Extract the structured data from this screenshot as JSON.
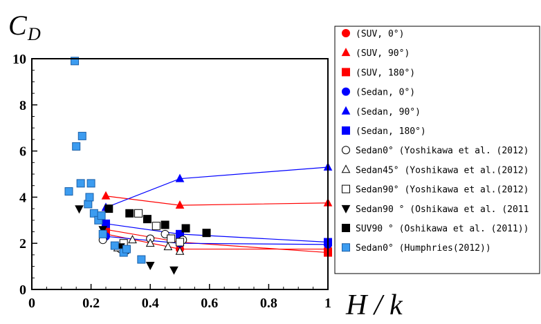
{
  "chart_data": {
    "type": "scatter",
    "y_axis_title": "C",
    "y_axis_title_sub": "D",
    "x_axis_title": "H / k",
    "xlim": [
      0,
      1
    ],
    "ylim": [
      0,
      10
    ],
    "x_ticks": [
      {
        "value": 0,
        "label": "0"
      },
      {
        "value": 0.2,
        "label": "0.2"
      },
      {
        "value": 0.4,
        "label": "0.4"
      },
      {
        "value": 0.6,
        "label": "0.6"
      },
      {
        "value": 0.8,
        "label": "0.8"
      },
      {
        "value": 1,
        "label": "1"
      }
    ],
    "y_ticks": [
      {
        "value": 0,
        "label": "0"
      },
      {
        "value": 2,
        "label": "2"
      },
      {
        "value": 4,
        "label": "4"
      },
      {
        "value": 6,
        "label": "6"
      },
      {
        "value": 8,
        "label": "8"
      },
      {
        "value": 10,
        "label": "10"
      }
    ],
    "legend_position": "right",
    "series": [
      {
        "name": "(SUV, 0°)",
        "label": "(SUV, 0°)",
        "marker": "circle",
        "fill": "#ff0000",
        "stroke": "#ff0000",
        "line": true,
        "line_color": "#ff0000",
        "points": [
          [
            0.25,
            2.4
          ],
          [
            0.5,
            1.75
          ],
          [
            1,
            1.75
          ]
        ]
      },
      {
        "name": "(SUV, 90°)",
        "label": "(SUV, 90°)",
        "marker": "triangle",
        "fill": "#ff0000",
        "stroke": "#ff0000",
        "line": true,
        "line_color": "#ff0000",
        "points": [
          [
            0.25,
            4.05
          ],
          [
            0.5,
            3.65
          ],
          [
            1,
            3.75
          ]
        ]
      },
      {
        "name": "(SUV, 180°)",
        "label": "(SUV, 180°)",
        "marker": "square",
        "fill": "#ff0000",
        "stroke": "#ff0000",
        "line": true,
        "line_color": "#ff0000",
        "points": [
          [
            0.25,
            2.6
          ],
          [
            0.5,
            2.05
          ],
          [
            1,
            1.6
          ]
        ]
      },
      {
        "name": "(Sedan, 0°)",
        "label": "(Sedan, 0°)",
        "marker": "circle",
        "fill": "#0000ff",
        "stroke": "#0000ff",
        "line": true,
        "line_color": "#0000ff",
        "points": [
          [
            0.25,
            2.3
          ],
          [
            0.5,
            2.0
          ],
          [
            1,
            1.95
          ]
        ]
      },
      {
        "name": "(Sedan, 90°)",
        "label": "(Sedan, 90°)",
        "marker": "triangle",
        "fill": "#0000ff",
        "stroke": "#0000ff",
        "line": true,
        "line_color": "#0000ff",
        "points": [
          [
            0.25,
            3.55
          ],
          [
            0.5,
            4.8
          ],
          [
            1,
            5.3
          ]
        ]
      },
      {
        "name": "(Sedan, 180°)",
        "label": "(Sedan, 180°)",
        "marker": "square",
        "fill": "#0000ff",
        "stroke": "#0000ff",
        "line": true,
        "line_color": "#0000ff",
        "points": [
          [
            0.25,
            2.85
          ],
          [
            0.5,
            2.4
          ],
          [
            1,
            2.05
          ]
        ]
      },
      {
        "name": "Sedan0° (Yoshikawa et al. (2012)",
        "label": "Sedan0° (Yoshikawa et al. (2012)",
        "marker": "circle",
        "fill": "#ffffff",
        "stroke": "#000000",
        "line": false,
        "points": [
          [
            0.24,
            2.15
          ],
          [
            0.3,
            1.75
          ],
          [
            0.32,
            1.7
          ],
          [
            0.4,
            2.2
          ],
          [
            0.45,
            2.4
          ],
          [
            0.51,
            2.15
          ]
        ]
      },
      {
        "name": "Sedan45° (Yoshikawa et al.(2012)",
        "label": "Sedan45° (Yoshikawa et al.(2012)",
        "marker": "triangle",
        "fill": "#ffffff",
        "stroke": "#000000",
        "line": false,
        "points": [
          [
            0.29,
            1.8
          ],
          [
            0.34,
            2.15
          ],
          [
            0.4,
            2.0
          ],
          [
            0.46,
            1.85
          ],
          [
            0.5,
            1.65
          ]
        ]
      },
      {
        "name": "Sedan90° (Yoshikawa et al.(2012)",
        "label": "Sedan90° (Yoshikawa et al.(2012)",
        "marker": "square",
        "fill": "#ffffff",
        "stroke": "#000000",
        "line": false,
        "points": [
          [
            0.31,
            2.0
          ],
          [
            0.36,
            3.3
          ],
          [
            0.42,
            2.75
          ],
          [
            0.47,
            2.2
          ],
          [
            0.5,
            2.05
          ]
        ]
      },
      {
        "name": "Sedan90 ° (Oshikawa et al. (2011",
        "label": "Sedan90 ° (Oshikawa et al. (2011",
        "marker": "triangle-down",
        "fill": "#000000",
        "stroke": "#000000",
        "line": false,
        "points": [
          [
            0.16,
            3.5
          ],
          [
            0.24,
            2.6
          ],
          [
            0.3,
            1.85
          ],
          [
            0.4,
            1.05
          ],
          [
            0.48,
            0.85
          ]
        ]
      },
      {
        "name": "SUV90 ° (Oshikawa et al. (2011))",
        "label": "SUV90 ° (Oshikawa et al. (2011))",
        "marker": "square",
        "fill": "#000000",
        "stroke": "#000000",
        "line": false,
        "points": [
          [
            0.26,
            3.5
          ],
          [
            0.33,
            3.3
          ],
          [
            0.39,
            3.05
          ],
          [
            0.45,
            2.8
          ],
          [
            0.52,
            2.65
          ],
          [
            0.59,
            2.45
          ]
        ]
      },
      {
        "name": "Sedan0° (Humphries(2012))",
        "label": "Sedan0°  (Humphries(2012))",
        "marker": "square",
        "fill": "#3c9cf0",
        "stroke": "#1a5fa8",
        "line": false,
        "points": [
          [
            0.125,
            4.25
          ],
          [
            0.145,
            9.9
          ],
          [
            0.15,
            6.2
          ],
          [
            0.165,
            4.6
          ],
          [
            0.17,
            6.65
          ],
          [
            0.19,
            3.7
          ],
          [
            0.195,
            4.0
          ],
          [
            0.2,
            4.6
          ],
          [
            0.21,
            3.3
          ],
          [
            0.225,
            3.0
          ],
          [
            0.235,
            3.2
          ],
          [
            0.24,
            2.4
          ],
          [
            0.28,
            1.9
          ],
          [
            0.31,
            1.6
          ],
          [
            0.32,
            1.75
          ],
          [
            0.37,
            1.3
          ]
        ]
      }
    ]
  }
}
